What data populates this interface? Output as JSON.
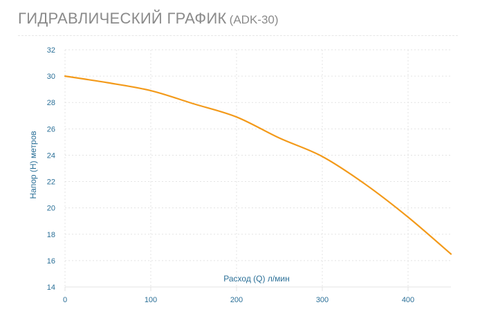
{
  "header": {
    "title": "ГИДРАВЛИЧЕСКИЙ ГРАФИК",
    "model": "(ADK-30)"
  },
  "colors": {
    "line": "#f39a1a",
    "text": "#2a6f97",
    "grid": "#e3e3e3",
    "title": "#8a8a8a"
  },
  "chart_data": {
    "type": "line",
    "title": "ГИДРАВЛИЧЕСКИЙ ГРАФИК (ADK-30)",
    "xlabel": "Расход (Q) л/мин",
    "ylabel": "Напор (H) метров",
    "xlim": [
      0,
      450
    ],
    "ylim": [
      14,
      32
    ],
    "xticks": [
      0,
      100,
      200,
      300,
      400
    ],
    "yticks": [
      14,
      16,
      18,
      20,
      22,
      24,
      26,
      28,
      30,
      32
    ],
    "grid": true,
    "series": [
      {
        "x": [
          0,
          50,
          100,
          150,
          200,
          250,
          300,
          350,
          400,
          450
        ],
        "y": [
          30,
          29.5,
          28.9,
          27.9,
          26.9,
          25.3,
          23.9,
          21.8,
          19.3,
          16.5
        ]
      }
    ]
  }
}
